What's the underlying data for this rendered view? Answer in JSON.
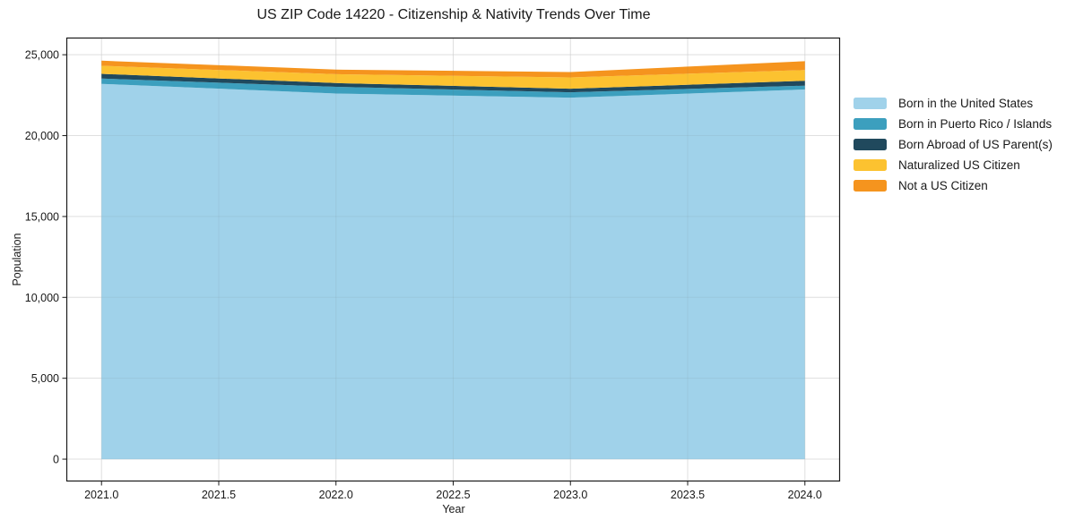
{
  "figure": {
    "background_color": "#ffffff",
    "frame_color": "#1a1a1a",
    "gridline_color": "#ececec"
  },
  "chart_data": {
    "type": "area",
    "stacked": true,
    "title": "US ZIP Code 14220 - Citizenship & Nativity Trends Over Time",
    "xlabel": "Year",
    "ylabel": "Population",
    "x": [
      2021,
      2022,
      2023,
      2024
    ],
    "series": [
      {
        "name": "Born in the United States",
        "color": "#a0d2ea",
        "values": [
          23200,
          22600,
          22350,
          22850
        ]
      },
      {
        "name": "Born in Puerto Rico / Islands",
        "color": "#3c9fbe",
        "values": [
          330,
          420,
          330,
          240
        ]
      },
      {
        "name": "Born Abroad of US Parent(s)",
        "color": "#20495d",
        "values": [
          290,
          230,
          220,
          300
        ]
      },
      {
        "name": "Naturalized US Citizen",
        "color": "#fcc230",
        "values": [
          500,
          550,
          700,
          660
        ]
      },
      {
        "name": "Not a US Citizen",
        "color": "#f5941e",
        "values": [
          310,
          280,
          330,
          550
        ]
      }
    ],
    "x_tick_values": [
      2021.0,
      2021.5,
      2022.0,
      2022.5,
      2023.0,
      2023.5,
      2024.0
    ],
    "x_tick_labels": [
      "2021.0",
      "2021.5",
      "2022.0",
      "2022.5",
      "2023.0",
      "2023.5",
      "2024.0"
    ],
    "y_tick_values": [
      0,
      5000,
      10000,
      15000,
      20000,
      25000
    ],
    "y_tick_labels": [
      "0",
      "5,000",
      "10,000",
      "15,000",
      "20,000",
      "25,000"
    ],
    "xlim": [
      2020.85,
      2024.15
    ],
    "ylim": [
      -1380,
      26060
    ],
    "grid": true,
    "legend_position": "right"
  }
}
